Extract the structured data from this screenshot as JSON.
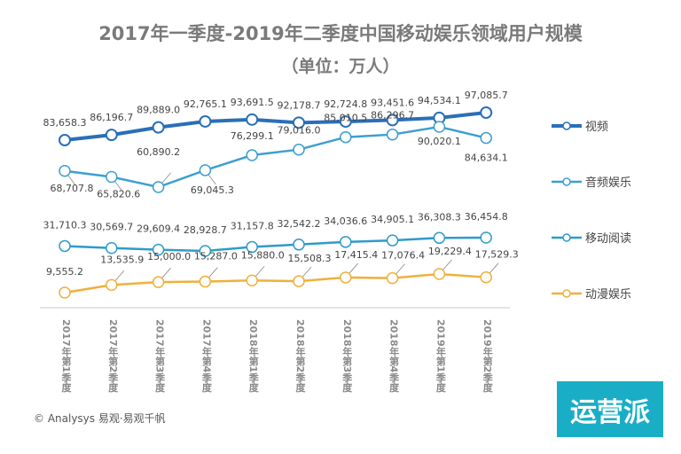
{
  "chart_data": {
    "type": "line",
    "title": "2017年一季度-2019年二季度中国移动娱乐领域用户规模",
    "subtitle": "（单位：万人）",
    "categories": [
      "2017年第1季度",
      "2017年第2季度",
      "2017年第3季度",
      "2017年第4季度",
      "2018年第1季度",
      "2018年第2季度",
      "2018年第3季度",
      "2018年第4季度",
      "2019年第1季度",
      "2019年第2季度"
    ],
    "series": [
      {
        "name": "视频",
        "color": "#2a6fb8",
        "values": [
          83658.3,
          86196.7,
          89889.0,
          92765.1,
          93691.5,
          92178.7,
          92724.8,
          93451.6,
          94534.1,
          97085.7
        ],
        "labels": [
          "83,658.3",
          "86,196.7",
          "89,889.0",
          "92,765.1",
          "93,691.5",
          "92,178.7",
          "92,724.8",
          "93,451.6",
          "94,534.1",
          "97,085.7"
        ]
      },
      {
        "name": "音频娱乐",
        "color": "#3c9fd0",
        "values": [
          68707.8,
          65820.6,
          60890.2,
          69045.3,
          76299.1,
          79016.0,
          85010.5,
          86296.7,
          90020.1,
          84634.1
        ],
        "labels": [
          "68,707.8",
          "65,820.6",
          "60,890.2",
          "69,045.3",
          "76,299.1",
          "79,016.0",
          "85,010.5",
          "86,296.7",
          "90,020.1",
          "84,634.1"
        ]
      },
      {
        "name": "移动阅读",
        "color": "#2f9bc9",
        "values": [
          31710.3,
          30569.7,
          29609.4,
          28928.7,
          31157.8,
          32542.2,
          34036.6,
          34905.1,
          36308.3,
          36454.8
        ],
        "labels": [
          "31,710.3",
          "30,569.7",
          "29,609.4",
          "28,928.7",
          "31,157.8",
          "32,542.2",
          "34,036.6",
          "34,905.1",
          "36,308.3",
          "36,454.8"
        ]
      },
      {
        "name": "动漫娱乐",
        "color": "#f0b03c",
        "values": [
          9555.2,
          13535.9,
          15000.0,
          15287.0,
          15880.0,
          15508.3,
          17415.4,
          17076.4,
          19229.4,
          17529.3
        ],
        "labels": [
          "9,555.2",
          "13,535.9",
          "15,000.0",
          "15,287.0",
          "15,880.0",
          "15,508.3",
          "17,415.4",
          "17,076.4",
          "19,229.4",
          "17,529.3"
        ]
      }
    ],
    "legend": "right",
    "grid": false
  },
  "footer": "© Analysys 易观·易观千帆",
  "logo": "运营派"
}
